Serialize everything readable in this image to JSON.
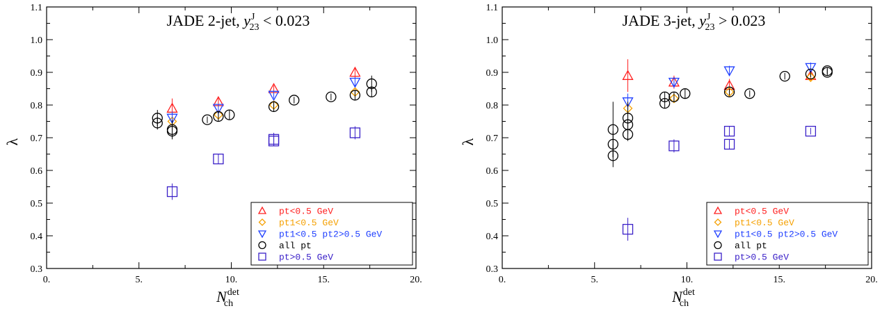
{
  "chart_data": [
    {
      "type": "scatter",
      "title": {
        "main": "JADE 2-jet, ",
        "var": "y",
        "sup": "J",
        "sub": "23",
        "cond": " < 0.023"
      },
      "xlabel": {
        "var": "N",
        "sup": "det",
        "sub": "ch"
      },
      "ylabel": "λ",
      "xlim": [
        0,
        20
      ],
      "ylim": [
        0.3,
        1.1
      ],
      "xticks": [
        "0.",
        "5.",
        "10.",
        "15.",
        "20."
      ],
      "yticks": [
        "0.3",
        "0.4",
        "0.5",
        "0.6",
        "0.7",
        "0.8",
        "0.9",
        "1.0",
        "1.1"
      ],
      "legend_position": "bottom-right",
      "series": [
        {
          "name": "pt<0.5 GeV",
          "marker": "triangle-up",
          "color": "#ff2020",
          "x": [
            6.8,
            9.3,
            12.3,
            16.7
          ],
          "y": [
            0.79,
            0.81,
            0.85,
            0.9
          ],
          "err": [
            0.03,
            0.015,
            0.01,
            0.015
          ]
        },
        {
          "name": "pt1<0.5 GeV",
          "marker": "diamond",
          "color": "#f5a000",
          "x": [
            6.8,
            9.3,
            12.3,
            16.7
          ],
          "y": [
            0.75,
            0.77,
            0.8,
            0.84
          ],
          "err": [
            0.02,
            0.01,
            0.01,
            0.01
          ]
        },
        {
          "name": "pt1<0.5 pt2>0.5 GeV",
          "marker": "triangle-down",
          "color": "#2040ff",
          "x": [
            6.8,
            9.3,
            12.3,
            16.7
          ],
          "y": [
            0.76,
            0.79,
            0.83,
            0.87
          ],
          "err": [
            0.02,
            0.01,
            0.01,
            0.015
          ]
        },
        {
          "name": "all pt",
          "marker": "circle",
          "color": "#000000",
          "x": [
            6.0,
            6.0,
            6.8,
            6.8,
            8.7,
            9.3,
            9.9,
            12.3,
            13.4,
            15.4,
            16.7,
            17.6,
            17.6
          ],
          "y": [
            0.76,
            0.745,
            0.725,
            0.72,
            0.755,
            0.765,
            0.77,
            0.795,
            0.815,
            0.825,
            0.83,
            0.865,
            0.84
          ],
          "err": [
            0.025,
            0.02,
            0.03,
            0.02,
            0.01,
            0.015,
            0.015,
            0.015,
            0.01,
            0.01,
            0.015,
            0.025,
            0.015
          ]
        },
        {
          "name": "pt>0.5 GeV",
          "marker": "square",
          "color": "#3a20c8",
          "x": [
            6.8,
            9.3,
            12.3,
            12.3,
            16.7
          ],
          "y": [
            0.535,
            0.635,
            0.695,
            0.69,
            0.715
          ],
          "err": [
            0.025,
            0.015,
            0.02,
            0.015,
            0.02
          ]
        }
      ]
    },
    {
      "type": "scatter",
      "title": {
        "main": "JADE 3-jet, ",
        "var": "y",
        "sup": "J",
        "sub": "23",
        "cond": " > 0.023"
      },
      "xlabel": {
        "var": "N",
        "sup": "det",
        "sub": "ch"
      },
      "ylabel": "λ",
      "xlim": [
        0,
        20
      ],
      "ylim": [
        0.3,
        1.1
      ],
      "xticks": [
        "0.",
        "5.",
        "10.",
        "15.",
        "20."
      ],
      "yticks": [
        "0.3",
        "0.4",
        "0.5",
        "0.6",
        "0.7",
        "0.8",
        "0.9",
        "1.0",
        "1.1"
      ],
      "legend_position": "bottom-right",
      "series": [
        {
          "name": "pt<0.5 GeV",
          "marker": "triangle-up",
          "color": "#ff2020",
          "x": [
            6.8,
            9.3,
            12.3,
            16.7
          ],
          "y": [
            0.89,
            0.87,
            0.86,
            0.89
          ],
          "err": [
            0.05,
            0.02,
            0.02,
            0.015
          ]
        },
        {
          "name": "pt1<0.5 GeV",
          "marker": "diamond",
          "color": "#f5a000",
          "x": [
            6.8,
            9.3,
            12.3,
            16.7
          ],
          "y": [
            0.79,
            0.82,
            0.84,
            0.885
          ],
          "err": [
            0.02,
            0.01,
            0.015,
            0.01
          ]
        },
        {
          "name": "pt1<0.5 pt2>0.5 GeV",
          "marker": "triangle-down",
          "color": "#2040ff",
          "x": [
            6.8,
            9.3,
            12.3,
            16.7
          ],
          "y": [
            0.81,
            0.87,
            0.905,
            0.915
          ],
          "err": [
            0.025,
            0.015,
            0.015,
            0.015
          ]
        },
        {
          "name": "all pt",
          "marker": "circle",
          "color": "#000000",
          "x": [
            6.0,
            6.0,
            6.0,
            6.8,
            6.8,
            6.8,
            8.8,
            8.8,
            9.3,
            9.9,
            12.3,
            13.4,
            15.3,
            16.7,
            17.6,
            17.6
          ],
          "y": [
            0.725,
            0.68,
            0.645,
            0.76,
            0.74,
            0.71,
            0.825,
            0.805,
            0.825,
            0.835,
            0.84,
            0.835,
            0.888,
            0.895,
            0.905,
            0.9
          ],
          "err": [
            0.085,
            0.04,
            0.035,
            0.05,
            0.03,
            0.02,
            0.015,
            0.015,
            0.015,
            0.015,
            0.01,
            0.01,
            0.01,
            0.01,
            0.01,
            0.01
          ]
        },
        {
          "name": "pt>0.5 GeV",
          "marker": "square",
          "color": "#3a20c8",
          "x": [
            6.8,
            9.3,
            12.3,
            12.3,
            16.7
          ],
          "y": [
            0.42,
            0.675,
            0.72,
            0.68,
            0.72
          ],
          "err": [
            0.035,
            0.02,
            0.015,
            0.015,
            0.01
          ]
        }
      ]
    }
  ]
}
